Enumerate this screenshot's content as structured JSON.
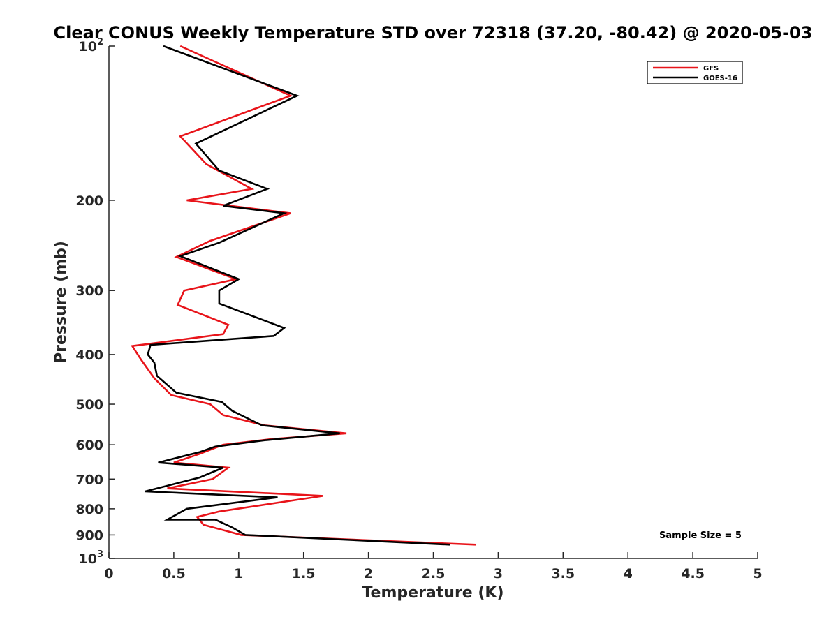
{
  "chart_data": {
    "type": "line",
    "title": "Clear CONUS Weekly Temperature STD over 72318 (37.20, -80.42) @ 2020-05-03",
    "xlabel": "Temperature (K)",
    "ylabel": "Pressure (mb)",
    "xlim": [
      0,
      5
    ],
    "ylim": [
      100,
      1000
    ],
    "y_scale": "log",
    "y_reversed": true,
    "grid": false,
    "legend_position": "top-right",
    "annotation": "Sample Size = 5",
    "x_ticks": [
      "0",
      "0.5",
      "1",
      "1.5",
      "2",
      "2.5",
      "3",
      "3.5",
      "4",
      "4.5",
      "5"
    ],
    "x_tick_values": [
      0,
      0.5,
      1,
      1.5,
      2,
      2.5,
      3,
      3.5,
      4,
      4.5,
      5
    ],
    "y_ticks": [
      {
        "value": 100,
        "base": "10",
        "exp": "2"
      },
      {
        "value": 200,
        "label": "200"
      },
      {
        "value": 300,
        "label": "300"
      },
      {
        "value": 400,
        "label": "400"
      },
      {
        "value": 500,
        "label": "500"
      },
      {
        "value": 600,
        "label": "600"
      },
      {
        "value": 700,
        "label": "700"
      },
      {
        "value": 800,
        "label": "800"
      },
      {
        "value": 900,
        "label": "900"
      },
      {
        "value": 1000,
        "base": "10",
        "exp": "3"
      }
    ],
    "series": [
      {
        "name": "GFS",
        "color": "#e8141a",
        "points": [
          [
            0.55,
            100
          ],
          [
            1.4,
            125
          ],
          [
            0.55,
            150
          ],
          [
            0.75,
            170
          ],
          [
            1.1,
            190
          ],
          [
            0.6,
            200
          ],
          [
            1.4,
            212
          ],
          [
            0.78,
            240
          ],
          [
            0.52,
            258
          ],
          [
            0.98,
            285
          ],
          [
            0.58,
            300
          ],
          [
            0.53,
            320
          ],
          [
            0.92,
            350
          ],
          [
            0.88,
            365
          ],
          [
            0.18,
            385
          ],
          [
            0.25,
            410
          ],
          [
            0.35,
            445
          ],
          [
            0.48,
            480
          ],
          [
            0.78,
            500
          ],
          [
            0.88,
            525
          ],
          [
            1.2,
            550
          ],
          [
            1.83,
            570
          ],
          [
            1.25,
            585
          ],
          [
            0.88,
            600
          ],
          [
            0.7,
            625
          ],
          [
            0.5,
            650
          ],
          [
            0.92,
            665
          ],
          [
            0.8,
            700
          ],
          [
            0.45,
            730
          ],
          [
            1.65,
            755
          ],
          [
            0.85,
            810
          ],
          [
            0.68,
            830
          ],
          [
            0.73,
            860
          ],
          [
            1.02,
            900
          ],
          [
            2.83,
            940
          ]
        ]
      },
      {
        "name": "GOES-16",
        "color": "#000000",
        "points": [
          [
            0.42,
            100
          ],
          [
            1.45,
            125
          ],
          [
            0.67,
            155
          ],
          [
            0.85,
            175
          ],
          [
            1.22,
            190
          ],
          [
            0.88,
            205
          ],
          [
            1.35,
            212
          ],
          [
            0.85,
            242
          ],
          [
            0.55,
            257
          ],
          [
            1.0,
            285
          ],
          [
            0.85,
            300
          ],
          [
            0.85,
            318
          ],
          [
            1.35,
            355
          ],
          [
            1.27,
            368
          ],
          [
            0.32,
            383
          ],
          [
            0.3,
            400
          ],
          [
            0.35,
            415
          ],
          [
            0.37,
            440
          ],
          [
            0.52,
            475
          ],
          [
            0.87,
            495
          ],
          [
            0.95,
            515
          ],
          [
            1.18,
            550
          ],
          [
            1.78,
            570
          ],
          [
            1.2,
            588
          ],
          [
            0.82,
            605
          ],
          [
            0.7,
            620
          ],
          [
            0.38,
            650
          ],
          [
            0.88,
            665
          ],
          [
            0.7,
            695
          ],
          [
            0.28,
            740
          ],
          [
            1.3,
            760
          ],
          [
            0.6,
            800
          ],
          [
            0.45,
            840
          ],
          [
            0.82,
            840
          ],
          [
            0.95,
            870
          ],
          [
            1.05,
            900
          ],
          [
            2.63,
            940
          ]
        ]
      }
    ]
  }
}
